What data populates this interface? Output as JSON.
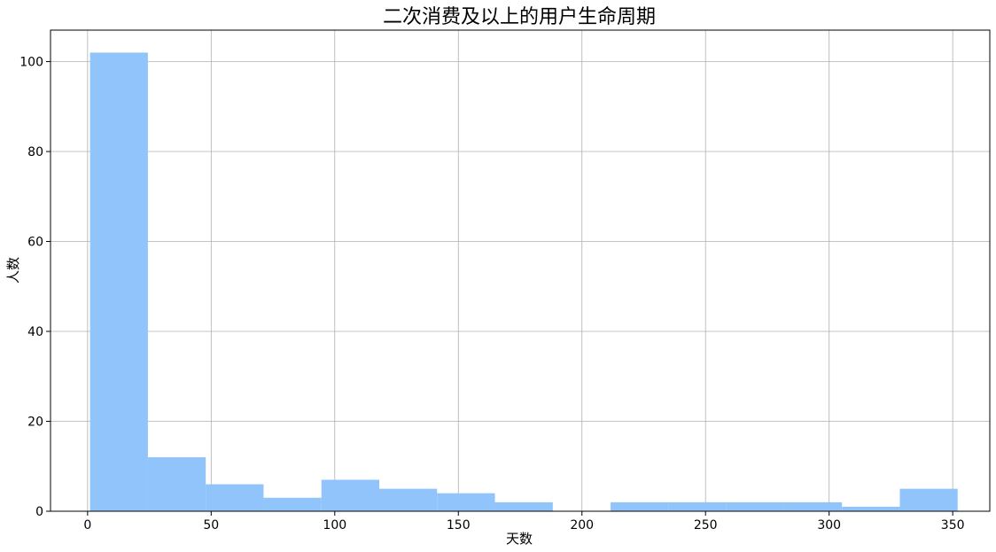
{
  "chart_data": {
    "type": "bar",
    "title": "二次消费及以上的用户生命周期",
    "xlabel": "天数",
    "ylabel": "人数",
    "xlim": [
      -15,
      365
    ],
    "ylim": [
      0,
      107
    ],
    "xticks": [
      0,
      50,
      100,
      150,
      200,
      250,
      300,
      350
    ],
    "yticks": [
      0,
      20,
      40,
      60,
      80,
      100
    ],
    "grid": true,
    "bar_color": "#90c4fa",
    "grid_color": "#b0b0b0",
    "bins": [
      {
        "x0": 1.0,
        "x1": 24.4,
        "value": 102
      },
      {
        "x0": 24.4,
        "x1": 47.8,
        "value": 12
      },
      {
        "x0": 47.8,
        "x1": 71.2,
        "value": 6
      },
      {
        "x0": 71.2,
        "x1": 94.6,
        "value": 3
      },
      {
        "x0": 94.6,
        "x1": 118.0,
        "value": 7
      },
      {
        "x0": 118.0,
        "x1": 141.4,
        "value": 5
      },
      {
        "x0": 141.4,
        "x1": 164.8,
        "value": 4
      },
      {
        "x0": 164.8,
        "x1": 188.2,
        "value": 2
      },
      {
        "x0": 188.2,
        "x1": 211.6,
        "value": 0
      },
      {
        "x0": 211.6,
        "x1": 235.0,
        "value": 2
      },
      {
        "x0": 235.0,
        "x1": 258.4,
        "value": 2
      },
      {
        "x0": 258.4,
        "x1": 281.8,
        "value": 2
      },
      {
        "x0": 281.8,
        "x1": 305.2,
        "value": 2
      },
      {
        "x0": 305.2,
        "x1": 328.6,
        "value": 1
      },
      {
        "x0": 328.6,
        "x1": 352.0,
        "value": 5
      }
    ]
  }
}
